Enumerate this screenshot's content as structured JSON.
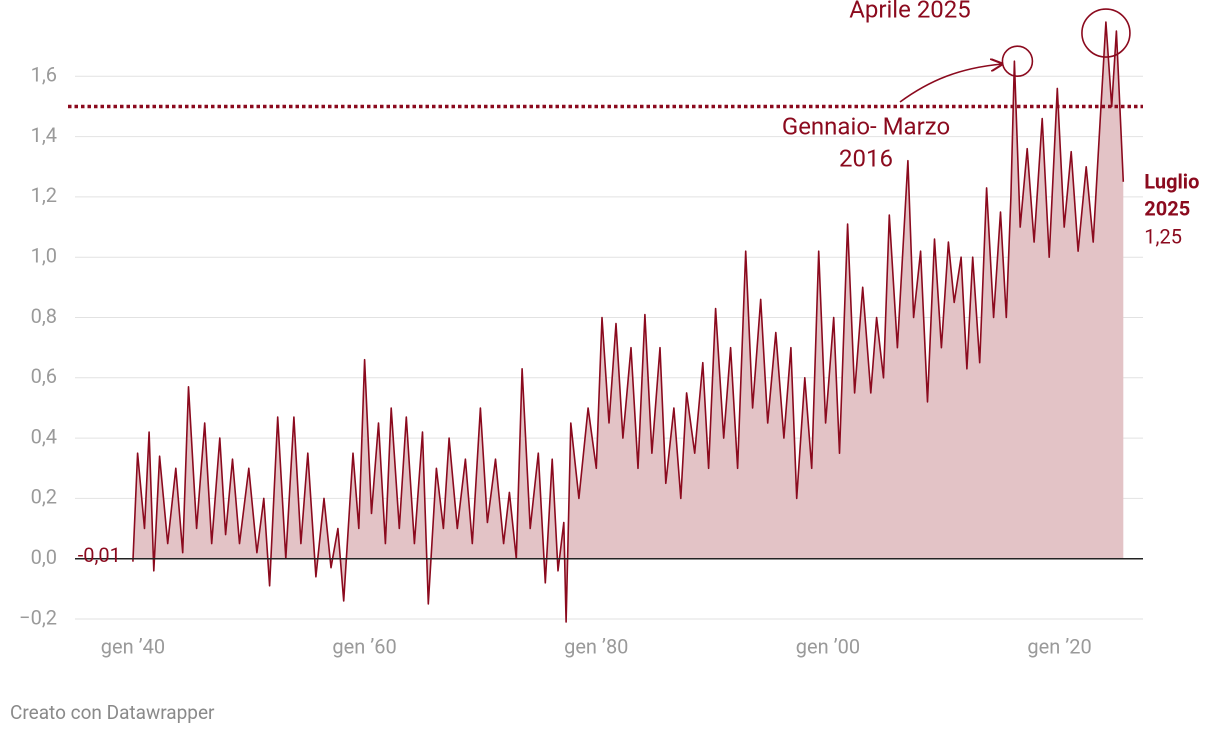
{
  "chart_data": {
    "type": "area",
    "color": "#8b0a1e",
    "fill": "#e3c3c6",
    "grid": true,
    "x": [
      1940.0,
      1940.4,
      1941.0,
      1941.4,
      1941.8,
      1942.3,
      1943.0,
      1943.7,
      1944.3,
      1944.8,
      1945.5,
      1946.2,
      1946.8,
      1947.5,
      1948.0,
      1948.6,
      1949.2,
      1950.0,
      1950.7,
      1951.3,
      1951.8,
      1952.5,
      1953.2,
      1953.9,
      1954.5,
      1955.1,
      1955.8,
      1956.5,
      1957.1,
      1957.7,
      1958.2,
      1959.0,
      1959.5,
      1960.0,
      1960.6,
      1961.2,
      1961.8,
      1962.3,
      1963.0,
      1963.6,
      1964.3,
      1965.0,
      1965.5,
      1966.2,
      1966.8,
      1967.3,
      1968.0,
      1968.7,
      1969.3,
      1970.0,
      1970.6,
      1971.3,
      1972.0,
      1972.5,
      1973.1,
      1973.6,
      1974.3,
      1975.0,
      1975.6,
      1976.2,
      1976.7,
      1977.2,
      1977.4,
      1977.8,
      1978.5,
      1979.3,
      1980.0,
      1980.5,
      1981.1,
      1981.7,
      1982.3,
      1983.0,
      1983.6,
      1984.2,
      1984.8,
      1985.5,
      1986.0,
      1986.7,
      1987.3,
      1987.8,
      1988.5,
      1989.2,
      1989.7,
      1990.3,
      1991.0,
      1991.6,
      1992.2,
      1992.9,
      1993.5,
      1994.2,
      1994.8,
      1995.5,
      1996.2,
      1996.8,
      1997.3,
      1998.0,
      1998.6,
      1999.2,
      1999.8,
      2000.5,
      2001.0,
      2001.7,
      2002.3,
      2003.0,
      2003.7,
      2004.2,
      2004.8,
      2005.3,
      2006.0,
      2006.9,
      2007.4,
      2008.0,
      2008.6,
      2009.2,
      2009.8,
      2010.4,
      2010.9,
      2011.5,
      2012.0,
      2012.5,
      2013.1,
      2013.7,
      2014.3,
      2014.9,
      2015.4,
      2015.8,
      2016.1,
      2016.6,
      2017.2,
      2017.8,
      2018.5,
      2019.1,
      2019.8,
      2020.4,
      2021.0,
      2021.6,
      2022.3,
      2022.9,
      2023.5,
      2024.0,
      2024.5,
      2024.9,
      2025.5
    ],
    "values": [
      -0.01,
      0.35,
      0.1,
      0.42,
      -0.04,
      0.34,
      0.05,
      0.3,
      0.02,
      0.57,
      0.1,
      0.45,
      0.05,
      0.4,
      0.08,
      0.33,
      0.05,
      0.3,
      0.02,
      0.2,
      -0.09,
      0.47,
      0.0,
      0.47,
      0.05,
      0.35,
      -0.06,
      0.2,
      -0.03,
      0.1,
      -0.14,
      0.35,
      0.1,
      0.66,
      0.15,
      0.45,
      0.05,
      0.5,
      0.1,
      0.47,
      0.05,
      0.42,
      -0.15,
      0.3,
      0.1,
      0.4,
      0.1,
      0.33,
      0.05,
      0.5,
      0.12,
      0.33,
      0.05,
      0.22,
      0.0,
      0.63,
      0.1,
      0.35,
      -0.08,
      0.33,
      -0.04,
      0.12,
      -0.21,
      0.45,
      0.2,
      0.5,
      0.3,
      0.8,
      0.45,
      0.78,
      0.4,
      0.7,
      0.3,
      0.81,
      0.35,
      0.7,
      0.25,
      0.5,
      0.2,
      0.55,
      0.35,
      0.65,
      0.3,
      0.83,
      0.4,
      0.7,
      0.3,
      1.02,
      0.5,
      0.86,
      0.45,
      0.75,
      0.4,
      0.7,
      0.2,
      0.6,
      0.3,
      1.02,
      0.45,
      0.8,
      0.35,
      1.11,
      0.55,
      0.9,
      0.55,
      0.8,
      0.6,
      1.14,
      0.7,
      1.32,
      0.8,
      1.02,
      0.52,
      1.06,
      0.7,
      1.05,
      0.85,
      1.0,
      0.63,
      1.0,
      0.65,
      1.23,
      0.8,
      1.15,
      0.8,
      1.2,
      1.65,
      1.1,
      1.36,
      1.05,
      1.46,
      1.0,
      1.56,
      1.1,
      1.35,
      1.02,
      1.3,
      1.05,
      1.45,
      1.78,
      1.5,
      1.75,
      1.25
    ],
    "value_labels": [
      "-0,01",
      null,
      null,
      null,
      null,
      null,
      null,
      null,
      null,
      null,
      null,
      null,
      null,
      null,
      null,
      null,
      null,
      null,
      null,
      null,
      null,
      null,
      null,
      null,
      null,
      null,
      null,
      null,
      null,
      null,
      null,
      null,
      null,
      null,
      null,
      null,
      null,
      null,
      null,
      null,
      null,
      null,
      null,
      null,
      null,
      null,
      null,
      null,
      null,
      null,
      null,
      null,
      null,
      null,
      null,
      null,
      null,
      null,
      null,
      null,
      null,
      null,
      null,
      null,
      null,
      null,
      null,
      null,
      null,
      null,
      null,
      null,
      null,
      null,
      null,
      null,
      null,
      null,
      null,
      null,
      null,
      null,
      null,
      null,
      null,
      null,
      null,
      null,
      null,
      null,
      null,
      null,
      null,
      null,
      null,
      null,
      null,
      null,
      null,
      null,
      null,
      null,
      null,
      null,
      null,
      null,
      null,
      null,
      null,
      null,
      null,
      null,
      null,
      null,
      null,
      null,
      null,
      null,
      null,
      null,
      null,
      null,
      null,
      null,
      null,
      null,
      null,
      null,
      null,
      null,
      null,
      null,
      null,
      null,
      null,
      null,
      null,
      null,
      null,
      null,
      null,
      null,
      "1,25"
    ],
    "xlim": [
      1935,
      2027.2
    ],
    "xticks": [
      {
        "value": 1940,
        "label": "gen ’40"
      },
      {
        "value": 1960,
        "label": "gen ’60"
      },
      {
        "value": 1980,
        "label": "gen ’80"
      },
      {
        "value": 2000,
        "label": "gen ’00"
      },
      {
        "value": 2020,
        "label": "gen ’20"
      }
    ],
    "ylim": [
      -0.2,
      1.8
    ],
    "yticks": [
      {
        "value": -0.2,
        "label": "−0,2"
      },
      {
        "value": 0,
        "label": "0,0"
      },
      {
        "value": 0.2,
        "label": "0,2"
      },
      {
        "value": 0.4,
        "label": "0,4"
      },
      {
        "value": 0.6,
        "label": "0,6"
      },
      {
        "value": 0.8,
        "label": "0,8"
      },
      {
        "value": 1.0,
        "label": "1,0"
      },
      {
        "value": 1.2,
        "label": "1,2"
      },
      {
        "value": 1.4,
        "label": "1,4"
      },
      {
        "value": 1.6,
        "label": "1,6"
      }
    ],
    "reference_line": 1.5,
    "annotations": [
      {
        "lines": [
          "Aprile 2025"
        ],
        "at": 139
      },
      {
        "lines": [
          "Gennaio- Marzo",
          "2016"
        ],
        "at": 126
      },
      {
        "lines": [
          "Luglio",
          "2025"
        ],
        "at": 142
      }
    ],
    "source": "Creato con Datawrapper"
  }
}
